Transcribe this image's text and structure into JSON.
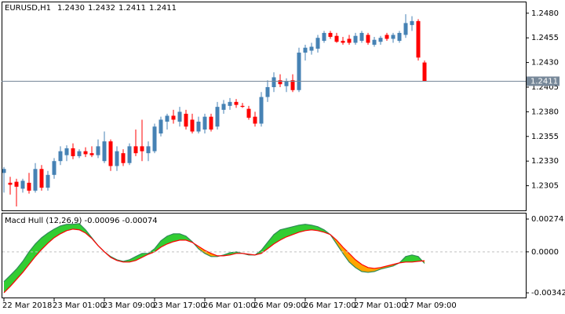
{
  "chart_data": [
    {
      "type": "candlestick",
      "title": "EURUSD,H1",
      "ohlc_labels": [
        "1.2430",
        "1.2432",
        "1.2411",
        "1.2411"
      ],
      "categories": [
        "22 Mar 2018",
        null,
        null,
        null,
        null,
        null,
        null,
        null,
        "23 Mar 01:00",
        null,
        null,
        null,
        null,
        null,
        null,
        null,
        "23 Mar 09:00",
        null,
        null,
        null,
        null,
        null,
        null,
        null,
        "23 Mar 17:00",
        null,
        null,
        null,
        null,
        null,
        null,
        null,
        "26 Mar 01:00",
        null,
        null,
        null,
        null,
        null,
        null,
        null,
        "26 Mar 09:00",
        null,
        null,
        null,
        null,
        null,
        null,
        null,
        "26 Mar 17:00",
        null,
        null,
        null,
        null,
        null,
        null,
        null,
        "27 Mar 01:00",
        null,
        null,
        null,
        null,
        null,
        null,
        null,
        "27 Mar 09:00",
        null,
        null,
        null
      ],
      "open": [
        1.2318,
        1.2308,
        1.2309,
        1.2302,
        1.2308,
        1.23,
        1.2322,
        1.2303,
        1.2316,
        1.233,
        1.2336,
        1.2343,
        1.2335,
        1.234,
        1.2338,
        1.2336,
        1.233,
        1.235,
        1.2325,
        1.2338,
        1.2328,
        1.2345,
        1.2345,
        1.2338,
        1.234,
        1.2358,
        1.237,
        1.2376,
        1.237,
        1.2378,
        1.2372,
        1.236,
        1.2362,
        1.2375,
        1.2365,
        1.2382,
        1.2386,
        1.239,
        1.2386,
        1.2383,
        1.2375,
        1.2368,
        1.2395,
        1.2405,
        1.2412,
        1.2406,
        1.2412,
        1.2402,
        1.244,
        1.2442,
        1.2444,
        1.2452,
        1.246,
        1.2457,
        1.2452,
        1.2454,
        1.245,
        1.2452,
        1.2458,
        1.2448,
        1.2451,
        1.2458,
        1.2454,
        1.2452,
        1.2458,
        1.2468,
        1.2472,
        1.243
      ],
      "high": [
        1.2324,
        1.2314,
        1.2312,
        1.2312,
        1.2318,
        1.2328,
        1.2326,
        1.232,
        1.2333,
        1.2345,
        1.2346,
        1.2348,
        1.2342,
        1.2344,
        1.2345,
        1.2352,
        1.236,
        1.2352,
        1.2345,
        1.2342,
        1.2348,
        1.2362,
        1.2372,
        1.235,
        1.2368,
        1.2375,
        1.2378,
        1.2382,
        1.2385,
        1.2382,
        1.2378,
        1.2375,
        1.2378,
        1.2378,
        1.239,
        1.2392,
        1.2394,
        1.2393,
        1.2389,
        1.2386,
        1.238,
        1.24,
        1.2412,
        1.242,
        1.2418,
        1.2414,
        1.2418,
        1.2445,
        1.2448,
        1.245,
        1.2458,
        1.2462,
        1.2462,
        1.246,
        1.2456,
        1.2458,
        1.246,
        1.2462,
        1.246,
        1.2456,
        1.2457,
        1.246,
        1.246,
        1.2462,
        1.2479,
        1.2477,
        1.2474,
        1.2432
      ],
      "low": [
        1.2298,
        1.2296,
        1.2284,
        1.2298,
        1.2297,
        1.2298,
        1.23,
        1.23,
        1.2312,
        1.2326,
        1.233,
        1.2332,
        1.2333,
        1.2334,
        1.2334,
        1.2333,
        1.2328,
        1.232,
        1.232,
        1.2325,
        1.2326,
        1.2335,
        1.233,
        1.233,
        1.2338,
        1.2355,
        1.2362,
        1.2368,
        1.2365,
        1.2362,
        1.2358,
        1.2358,
        1.2358,
        1.236,
        1.2362,
        1.2378,
        1.2382,
        1.2384,
        1.2384,
        1.2372,
        1.2365,
        1.2365,
        1.239,
        1.24,
        1.2405,
        1.24,
        1.24,
        1.24,
        1.2432,
        1.2438,
        1.244,
        1.245,
        1.2454,
        1.245,
        1.2448,
        1.2448,
        1.2448,
        1.245,
        1.2448,
        1.2446,
        1.2448,
        1.2452,
        1.245,
        1.245,
        1.2455,
        1.2462,
        1.2432,
        1.2411
      ],
      "close": [
        1.2322,
        1.2306,
        1.2304,
        1.231,
        1.23,
        1.2322,
        1.2303,
        1.2316,
        1.233,
        1.234,
        1.2343,
        1.2335,
        1.234,
        1.2337,
        1.2336,
        1.2345,
        1.235,
        1.2325,
        1.234,
        1.2328,
        1.2345,
        1.2338,
        1.234,
        1.2345,
        1.2365,
        1.2372,
        1.2376,
        1.2372,
        1.238,
        1.2365,
        1.236,
        1.237,
        1.2375,
        1.2362,
        1.2385,
        1.2388,
        1.239,
        1.2387,
        1.2385,
        1.2374,
        1.2368,
        1.2395,
        1.2405,
        1.2415,
        1.2408,
        1.2411,
        1.2402,
        1.244,
        1.2445,
        1.2446,
        1.2455,
        1.246,
        1.2456,
        1.2451,
        1.245,
        1.245,
        1.2457,
        1.246,
        1.245,
        1.2453,
        1.2455,
        1.2454,
        1.2458,
        1.246,
        1.247,
        1.2472,
        1.2435,
        1.2411
      ],
      "up_color": "#4682b4",
      "down_color": "#ff0000",
      "ylim": [
        1.228,
        1.2491
      ],
      "yticks": [
        {
          "value": 1.248,
          "label": "1.2480"
        },
        {
          "value": 1.2455,
          "label": "1.2455"
        },
        {
          "value": 1.243,
          "label": "1.2430"
        },
        {
          "value": 1.2405,
          "label": "1.2405"
        },
        {
          "value": 1.238,
          "label": "1.2380"
        },
        {
          "value": 1.2355,
          "label": "1.2355"
        },
        {
          "value": 1.233,
          "label": "1.2330"
        },
        {
          "value": 1.2305,
          "label": "1.2305"
        }
      ],
      "current_price": {
        "value": 1.2411,
        "label": "1.2411"
      },
      "current_price_color": "#778899"
    },
    {
      "type": "line",
      "title": "Macd Hull (12,26,9) -0.00096 -0.00074",
      "series": [
        {
          "color": "#2e8b57",
          "values": [
            -0.00249,
            -0.00197,
            -0.00144,
            -0.00079,
            0,
            0.00066,
            0.00118,
            0.00157,
            0.0019,
            0.00216,
            0.0023,
            0.0023,
            0.00236,
            0.00184,
            0.00118,
            0.00052,
            0,
            -0.00039,
            -0.00066,
            -0.00079,
            -0.00066,
            -0.00039,
            -0.00013,
            -0.00013,
            0.00026,
            0.00092,
            0.00131,
            0.00151,
            0.00151,
            0.00131,
            0.00085,
            0.00026,
            -0.00013,
            -0.00039,
            -0.00039,
            -0.00026,
            -7e-05,
            0,
            -0.00013,
            -0.00026,
            -0.00026,
            0.00013,
            0.00079,
            0.00144,
            0.00184,
            0.00197,
            0.0021,
            0.00223,
            0.0023,
            0.00223,
            0.0021,
            0.00184,
            0.00144,
            0.00066,
            -0.00013,
            -0.00085,
            -0.00131,
            -0.00164,
            -0.00171,
            -0.00164,
            -0.00144,
            -0.00131,
            -0.00118,
            -0.00092,
            -0.00039,
            -0.00026,
            -0.00039,
            -0.00096
          ]
        },
        {
          "color": "#ff0000",
          "values": [
            -0.00341,
            -0.00289,
            -0.0023,
            -0.00171,
            -0.00105,
            -0.00039,
            0.0002,
            0.00072,
            0.00118,
            0.00151,
            0.00177,
            0.0019,
            0.00184,
            0.00157,
            0.00112,
            0.00052,
            0,
            -0.00046,
            -0.00072,
            -0.00085,
            -0.00085,
            -0.00072,
            -0.00046,
            -0.0002,
            0,
            0.00039,
            0.00066,
            0.00085,
            0.00098,
            0.00098,
            0.00079,
            0.00046,
            0.00013,
            -0.00013,
            -0.00033,
            -0.00033,
            -0.00026,
            -0.00013,
            -0.00013,
            -0.0002,
            -0.00026,
            -0.00013,
            0.00026,
            0.00066,
            0.00098,
            0.00125,
            0.00144,
            0.00164,
            0.00177,
            0.00184,
            0.00177,
            0.00164,
            0.00144,
            0.00098,
            0.00039,
            -0.00013,
            -0.00066,
            -0.00105,
            -0.00131,
            -0.00138,
            -0.00131,
            -0.00118,
            -0.00105,
            -0.00092,
            -0.00085,
            -0.00085,
            -0.00079,
            -0.00074
          ]
        }
      ],
      "up_fill": "#32cd32",
      "down_fill": "#ffa500",
      "level_color": "#c0c0c0",
      "ylim": [
        -0.00381,
        0.0032
      ],
      "yticks": [
        0.00274,
        {
          "value": 0,
          "label": "0.0000"
        },
        -0.00342
      ]
    }
  ]
}
